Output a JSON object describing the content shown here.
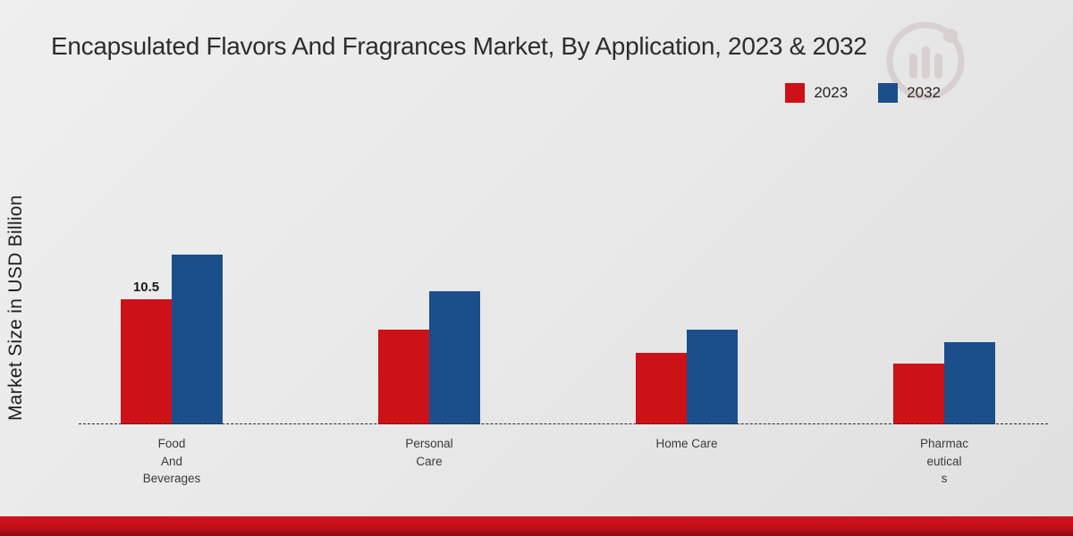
{
  "page": {
    "title": "Encapsulated Flavors And Fragrances Market, By Application, 2023 & 2032",
    "ylabel": "Market Size in USD Billion"
  },
  "legend": [
    {
      "label": "2023",
      "color": "#cc1117"
    },
    {
      "label": "2032",
      "color": "#1a4f8c"
    }
  ],
  "chart_data": {
    "type": "bar",
    "title": "Encapsulated Flavors And Fragrances Market, By Application, 2023 & 2032",
    "xlabel": "",
    "ylabel": "Market Size in USD Billion",
    "categories": [
      "Food And Beverages",
      "Personal Care",
      "Home Care",
      "Pharmaceuticals"
    ],
    "categories_display": [
      [
        "Food",
        "And",
        "Beverages"
      ],
      [
        "Personal",
        "Care"
      ],
      [
        "Home Care"
      ],
      [
        "Pharmac",
        "eutical",
        "s"
      ]
    ],
    "series": [
      {
        "name": "2023",
        "color": "#cc1117",
        "values": [
          10.5,
          8.0,
          6.0,
          5.1
        ]
      },
      {
        "name": "2032",
        "color": "#1a4f8c",
        "values": [
          14.3,
          11.2,
          8.0,
          6.9
        ]
      }
    ],
    "data_labels": [
      {
        "series": "2023",
        "category": "Food And Beverages",
        "value": "10.5"
      }
    ],
    "ylim": [
      0,
      16
    ],
    "grid": false,
    "axis_line": "dashed-baseline",
    "legend_position": "top-right"
  },
  "branding": {
    "watermark_icon": "market-research-future-logo"
  }
}
